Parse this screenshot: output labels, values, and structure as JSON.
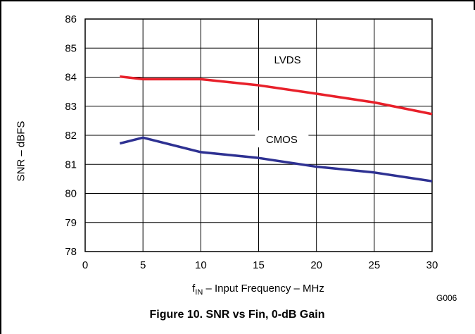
{
  "chart_data": {
    "type": "line",
    "caption": "Figure 10. SNR vs Fin, 0-dB Gain",
    "xlabel_main": "f",
    "xlabel_sub": "IN",
    "xlabel_rest": " – Input Frequency – MHz",
    "ylabel": "SNR – dBFS",
    "figure_code": "G006",
    "xlim": [
      0,
      30
    ],
    "ylim": [
      78,
      86
    ],
    "xticks": [
      "0",
      "5",
      "10",
      "15",
      "20",
      "25",
      "30"
    ],
    "yticks": [
      "78",
      "79",
      "80",
      "81",
      "82",
      "83",
      "84",
      "85",
      "86"
    ],
    "grid": true,
    "series": [
      {
        "name": "LVDS",
        "color": "#e8202a",
        "x": [
          3,
          5,
          10,
          15,
          20,
          25,
          30
        ],
        "y": [
          84.02,
          83.93,
          83.93,
          83.72,
          83.43,
          83.13,
          82.73
        ]
      },
      {
        "name": "CMOS",
        "color": "#2e3192",
        "x": [
          3,
          5,
          10,
          15,
          20,
          25,
          30
        ],
        "y": [
          81.72,
          81.92,
          81.42,
          81.22,
          80.92,
          80.72,
          80.42
        ]
      }
    ]
  }
}
